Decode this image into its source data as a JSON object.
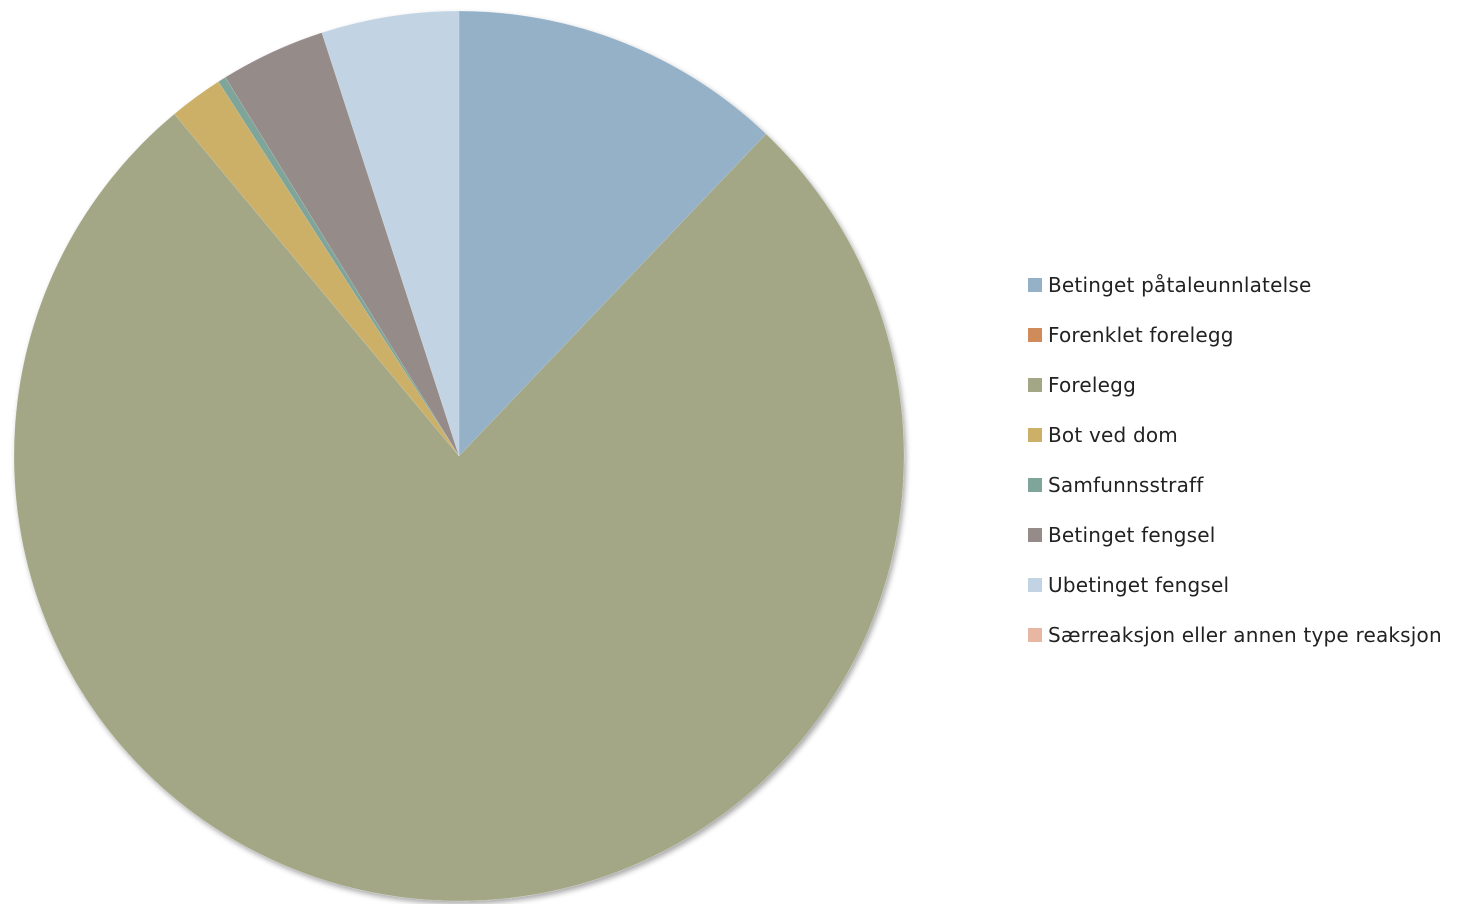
{
  "chart_data": {
    "type": "pie",
    "title": "",
    "legend_position": "right",
    "start_angle_deg": 0,
    "direction": "clockwise",
    "categories": [
      "Betinget påtaleunnlatelse",
      "Forenklet forelegg",
      "Forelegg",
      "Bot ved dom",
      "Samfunnsstraff",
      "Betinget fengsel",
      "Ubetinget fengsel",
      "Særreaksjon eller annen type reaksjon"
    ],
    "values": [
      12.4,
      0.0,
      78.6,
      2.0,
      0.3,
      3.9,
      5.1,
      0.0
    ],
    "colors": [
      "#94B1C8",
      "#D08B5A",
      "#A3A786",
      "#CCB067",
      "#7FA59A",
      "#958B89",
      "#C2D4E4",
      "#E8B7A4"
    ]
  }
}
